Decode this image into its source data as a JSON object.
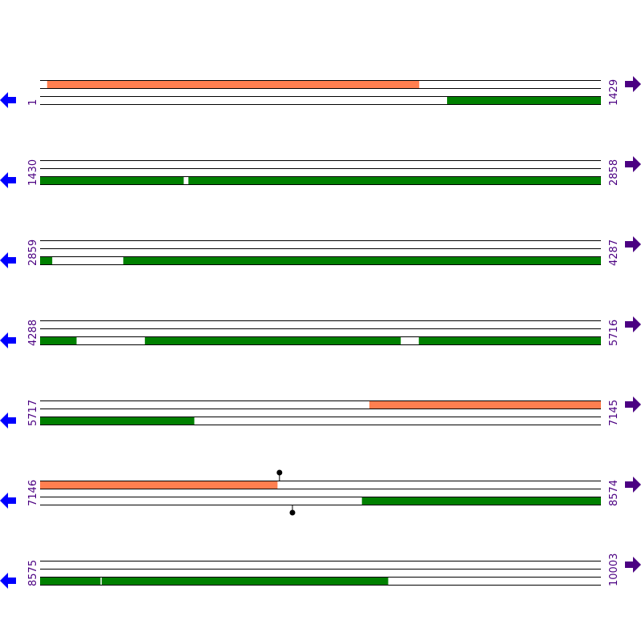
{
  "rows": [
    {
      "start": 1,
      "end": 1429,
      "features": [
        {
          "strand": "top",
          "color": "#ff7f50",
          "start": 19,
          "end": 966
        },
        {
          "strand": "bottom",
          "color": "#008000",
          "start": 1038,
          "end": 1429
        }
      ]
    },
    {
      "start": 1430,
      "end": 2858,
      "features": [
        {
          "strand": "bottom",
          "color": "#008000",
          "start": 1430,
          "end": 1795
        },
        {
          "strand": "bottom",
          "color": "#008000",
          "start": 1808,
          "end": 2858
        }
      ]
    },
    {
      "start": 2859,
      "end": 4287,
      "features": [
        {
          "strand": "bottom",
          "color": "#008000",
          "start": 2859,
          "end": 2889
        },
        {
          "strand": "bottom",
          "color": "#008000",
          "start": 3071,
          "end": 4287
        }
      ]
    },
    {
      "start": 4288,
      "end": 5716,
      "features": [
        {
          "strand": "bottom",
          "color": "#008000",
          "start": 4288,
          "end": 4380
        },
        {
          "strand": "bottom",
          "color": "#008000",
          "start": 4555,
          "end": 5206
        },
        {
          "strand": "bottom",
          "color": "#008000",
          "start": 5253,
          "end": 5716
        }
      ]
    },
    {
      "start": 5717,
      "end": 7145,
      "features": [
        {
          "strand": "top",
          "color": "#ff7f50",
          "start": 6556,
          "end": 7145
        },
        {
          "strand": "bottom",
          "color": "#008000",
          "start": 5717,
          "end": 6109
        }
      ]
    },
    {
      "start": 7146,
      "end": 8574,
      "features": [
        {
          "strand": "top",
          "color": "#ff7f50",
          "start": 7146,
          "end": 7750
        },
        {
          "strand": "bottom",
          "color": "#008000",
          "start": 7966,
          "end": 8574
        }
      ],
      "sites": [
        {
          "strand": "top",
          "position": 7756
        },
        {
          "strand": "bottom",
          "position": 7789
        }
      ]
    },
    {
      "start": 8575,
      "end": 10003,
      "features": [
        {
          "strand": "bottom",
          "color": "#008000",
          "start": 8575,
          "end": 8728
        },
        {
          "strand": "bottom",
          "color": "#008000",
          "start": 8732,
          "end": 9461
        }
      ]
    }
  ]
}
